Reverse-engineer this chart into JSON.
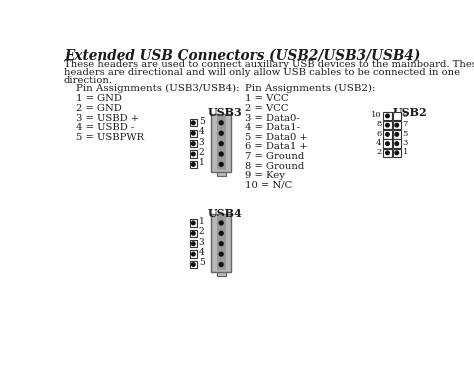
{
  "title": "Extended USB Connectors (USB2/USB3/USB4)",
  "description_line1": "These headers are used to connect auxillary USB devices to the mainboard. These",
  "description_line2": "headers are directional and will only allow USB cables to be connected in one",
  "description_line3": "direction.",
  "left_section_title": "Pin Assignments (USB3/USB4):",
  "right_section_title": "Pin Assignments (USB2):",
  "usb34_pins": [
    "1 = GND",
    "2 = GND",
    "3 = USBD +",
    "4 = USBD -",
    "5 = USBPWR"
  ],
  "usb2_pins": [
    "1 = VCC",
    "2 = VCC",
    "3 = Data0-",
    "4 = Data1-",
    "5 = Data0 +",
    "6 = Data1 +",
    "7 = Ground",
    "8 = Ground",
    "9 = Key",
    "10 = N/C"
  ],
  "bg_color": "#ffffff",
  "text_color": "#1a1a1a",
  "connector_color": "#b8b8b8",
  "pin_dot_color": "#111111",
  "box_edge_color": "#333333"
}
